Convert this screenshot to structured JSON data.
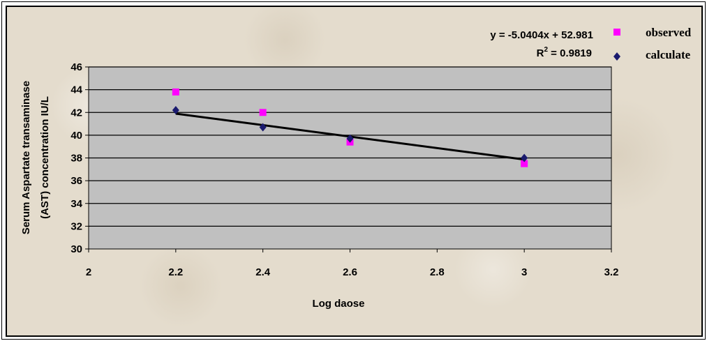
{
  "chart_data": {
    "type": "scatter",
    "xlabel": "Log daose",
    "ylabel_lines": [
      "Serum Aspartate transaminase",
      "(AST) concentration IU/L"
    ],
    "xlim": [
      2,
      3.2
    ],
    "ylim": [
      30,
      46
    ],
    "x_ticks": [
      "2",
      "2.2",
      "2.4",
      "2.6",
      "2.8",
      "3",
      "3.2"
    ],
    "y_ticks": [
      "30",
      "32",
      "34",
      "36",
      "38",
      "40",
      "42",
      "44",
      "46"
    ],
    "grid": "horizontal",
    "legend_position": "top-right",
    "series": [
      {
        "name": "observed",
        "marker": "square",
        "color": "#ff00ff",
        "x": [
          2.2,
          2.4,
          2.6,
          3.0
        ],
        "y": [
          43.8,
          42.0,
          39.4,
          37.5
        ]
      },
      {
        "name": "calculate",
        "marker": "diamond",
        "color": "#1a1a6e",
        "x": [
          2.2,
          2.4,
          2.6,
          3.0
        ],
        "y": [
          42.2,
          40.7,
          39.7,
          38.0
        ]
      }
    ],
    "trendline": {
      "slope": -5.0404,
      "intercept": 52.981,
      "x_range": [
        2.2,
        3.0
      ],
      "color": "#000000",
      "equation_text": "y = -5.0404x + 52.981",
      "r2_prefix": "R",
      "r2_sup": "2",
      "r2_suffix": " = 0.9819"
    },
    "plot_area_color": "#c0c0c0"
  }
}
